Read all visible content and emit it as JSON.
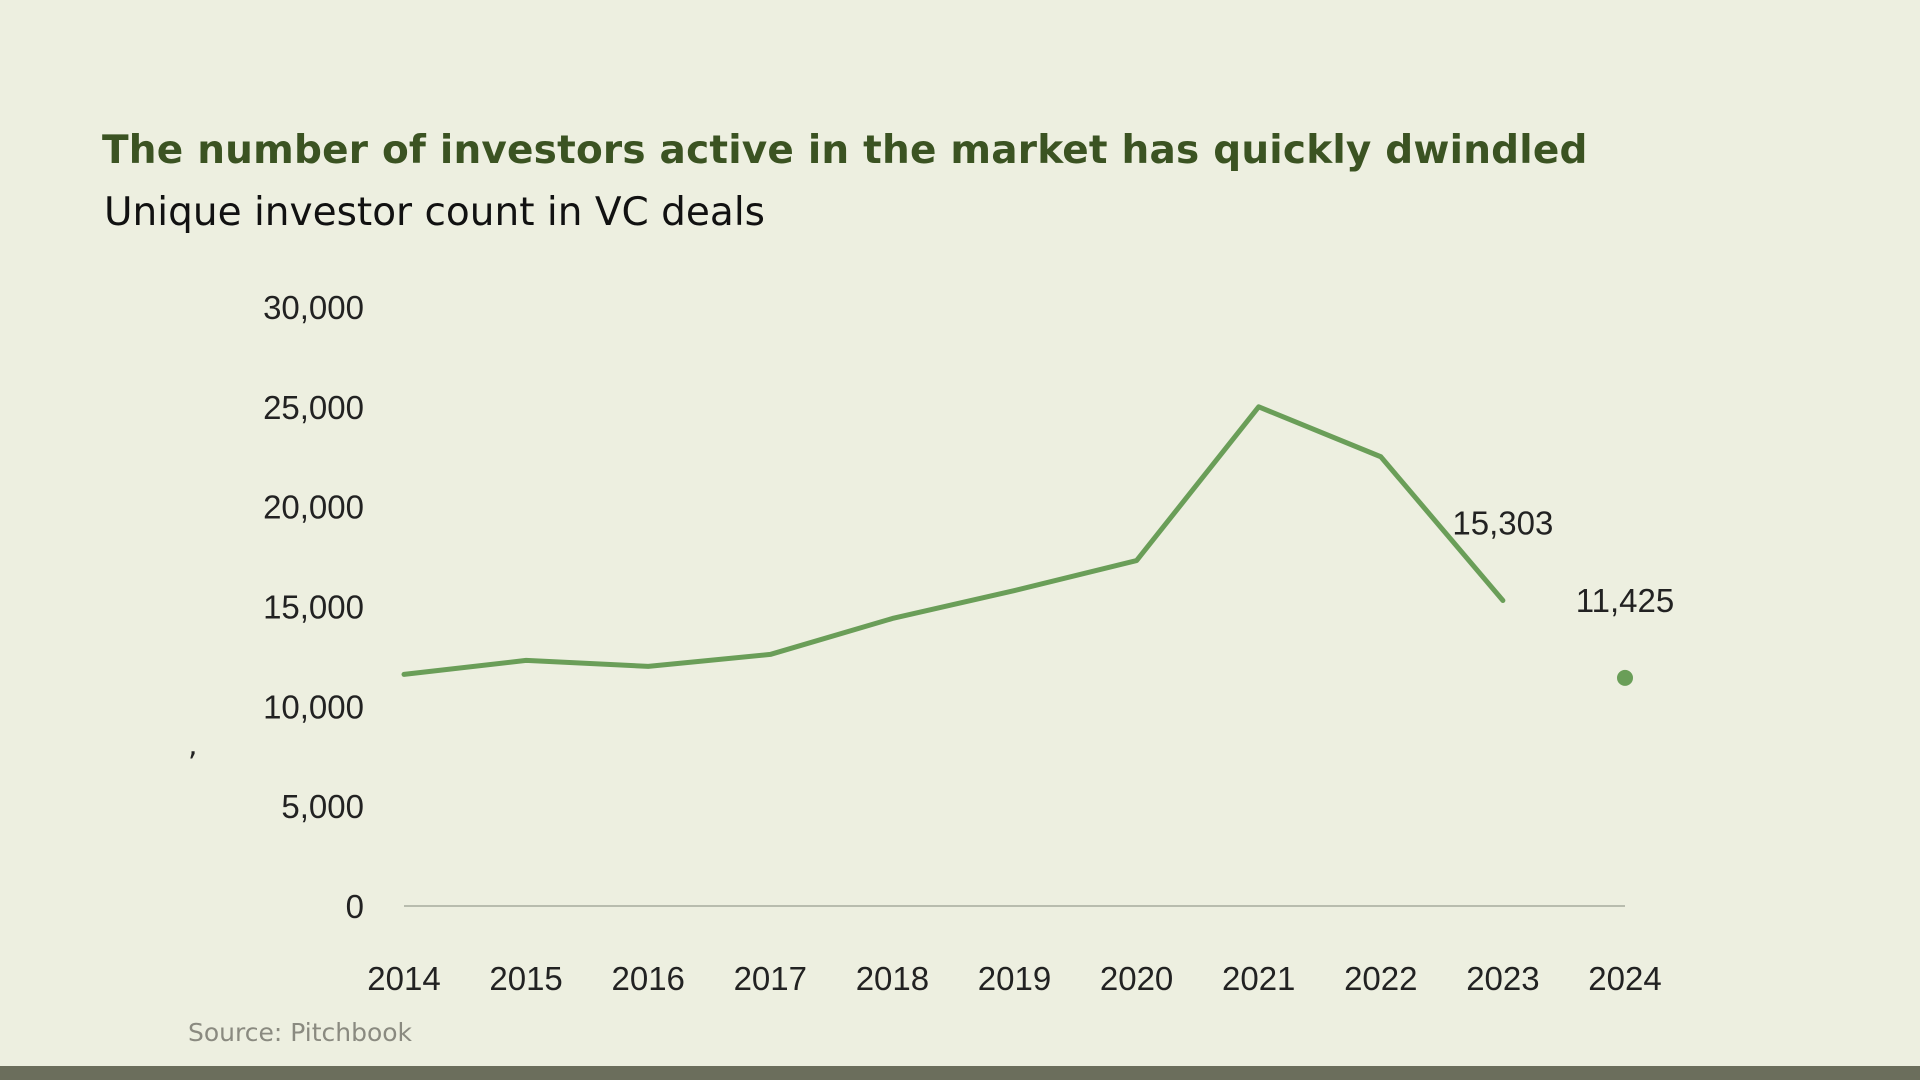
{
  "header": {
    "title": "The number of investors active in the market has quickly dwindled",
    "subtitle": "Unique investor count in VC deals"
  },
  "footer": {
    "source": "Source: Pitchbook"
  },
  "stray_mark": ",",
  "colors": {
    "background": "#edefe0",
    "title": "#3b5322",
    "series_line": "#6a9e58",
    "axis_line": "#b8bcae",
    "footer_bar": "#6b6e5c"
  },
  "chart_data": {
    "type": "line",
    "title": "Unique investor count in VC deals",
    "xlabel": "",
    "ylabel": "",
    "x": [
      2014,
      2015,
      2016,
      2017,
      2018,
      2019,
      2020,
      2021,
      2022,
      2023,
      2024
    ],
    "x_tick_labels": [
      "2014",
      "2015",
      "2016",
      "2017",
      "2018",
      "2019",
      "2020",
      "2021",
      "2022",
      "2023",
      "2024"
    ],
    "ylim": [
      0,
      30000
    ],
    "y_ticks": [
      0,
      5000,
      10000,
      15000,
      20000,
      25000,
      30000
    ],
    "y_tick_labels": [
      "0",
      "5,000",
      "10,000",
      "15,000",
      "20,000",
      "25,000",
      "30,000"
    ],
    "grid": false,
    "series": [
      {
        "values": [
          11600,
          12300,
          12000,
          12600,
          14400,
          15800,
          17300,
          25000,
          22500,
          15303,
          null
        ],
        "style": "line"
      },
      {
        "values": [
          null,
          null,
          null,
          null,
          null,
          null,
          null,
          null,
          null,
          null,
          11425
        ],
        "style": "point"
      }
    ],
    "annotations": [
      {
        "x": 2023,
        "y": 15303,
        "text": "15,303"
      },
      {
        "x": 2024,
        "y": 11425,
        "text": "11,425"
      }
    ]
  }
}
